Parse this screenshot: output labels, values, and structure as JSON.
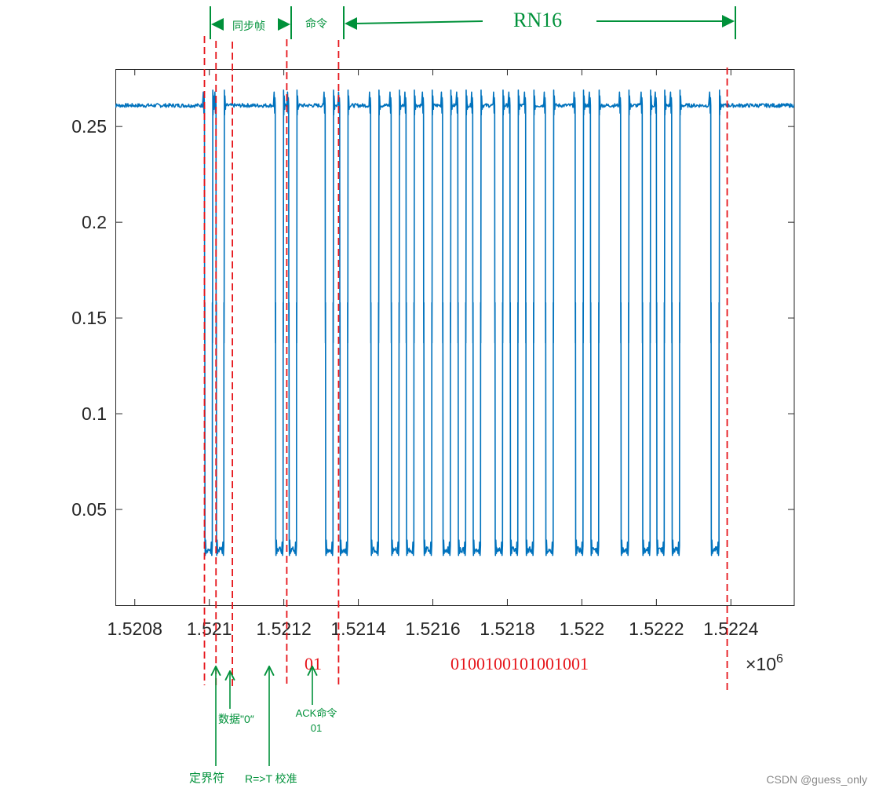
{
  "chart_data": {
    "type": "line",
    "title": "",
    "xlabel": "",
    "ylabel": "",
    "x_exponent_label": "×10",
    "x_exponent_value": "6",
    "xlim": [
      1.52075,
      1.52257
    ],
    "ylim": [
      0.0,
      0.28
    ],
    "x_ticks": [
      1.5208,
      1.521,
      1.5212,
      1.5214,
      1.5216,
      1.5218,
      1.522,
      1.5222,
      1.5224
    ],
    "x_tick_labels": [
      "1.5208",
      "1.521",
      "1.5212",
      "1.5214",
      "1.5216",
      "1.5218",
      "1.522",
      "1.5222",
      "1.5224"
    ],
    "y_ticks": [
      0.05,
      0.1,
      0.15,
      0.2,
      0.25
    ],
    "y_tick_labels": [
      "0.05",
      "0.1",
      "0.15",
      "0.2",
      "0.25"
    ],
    "series": [
      {
        "name": "signal",
        "color": "#0072bd",
        "high_level": 0.261,
        "low_level": 0.029,
        "low_pulses": [
          [
            1.520987,
            1.521008
          ],
          [
            1.521018,
            1.521039
          ],
          [
            1.521177,
            1.521198
          ],
          [
            1.521213,
            1.521234
          ],
          [
            1.521311,
            1.521332
          ],
          [
            1.52135,
            1.521371
          ],
          [
            1.521433,
            1.521454
          ],
          [
            1.521488,
            1.521509
          ],
          [
            1.521528,
            1.521549
          ],
          [
            1.521575,
            1.521597
          ],
          [
            1.521626,
            1.521647
          ],
          [
            1.521667,
            1.521688
          ],
          [
            1.521707,
            1.521728
          ],
          [
            1.521766,
            1.521787
          ],
          [
            1.521807,
            1.521828
          ],
          [
            1.521849,
            1.52187
          ],
          [
            1.521902,
            1.521923
          ],
          [
            1.521982,
            1.522003
          ],
          [
            1.522023,
            1.522045
          ],
          [
            1.522104,
            1.522125
          ],
          [
            1.522162,
            1.522183
          ],
          [
            1.5222,
            1.522221
          ],
          [
            1.522241,
            1.522262
          ],
          [
            1.522346,
            1.522368
          ]
        ]
      }
    ],
    "markers": {
      "color": "#e6141a",
      "x_values": [
        1.520987,
        1.521018,
        1.521062,
        1.521208,
        1.521347,
        1.52239
      ]
    },
    "annotations": {
      "sync_frame_label": "同步帧",
      "command_label": "命令",
      "rn16_label": "RN16",
      "command_bits": "01",
      "rn16_bits": "0100100101001001",
      "delimiter_label": "定界符",
      "data0_label": "数据\"0″",
      "rt_cal_label": "R=>T 校准",
      "ack_label_line1": "ACK命令",
      "ack_label_line2": "01",
      "green_color": "#00913a",
      "red_color": "#e6141a"
    }
  },
  "watermark": "CSDN @guess_only"
}
